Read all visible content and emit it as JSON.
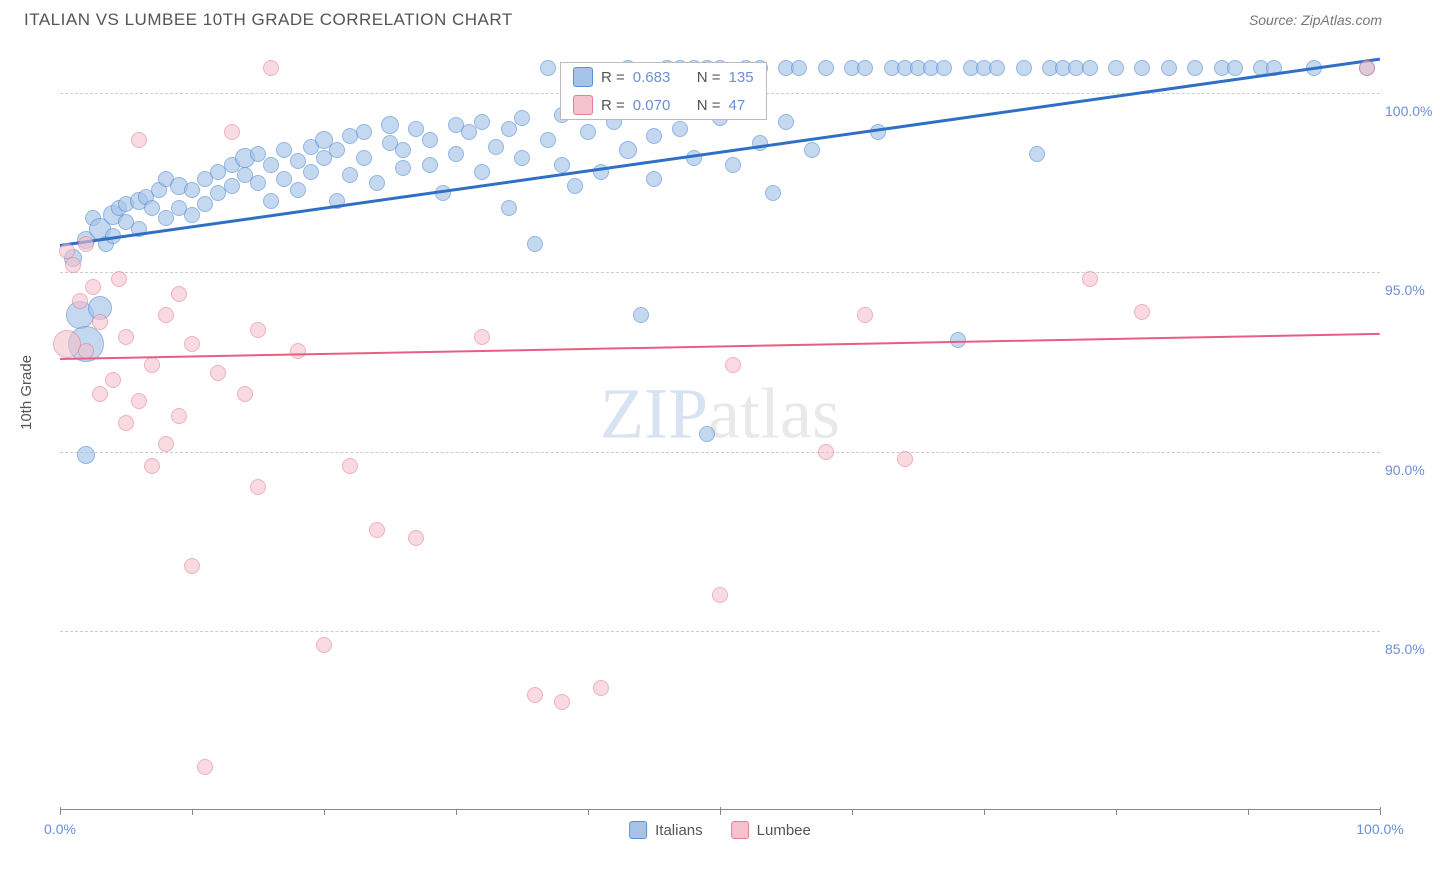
{
  "title": "ITALIAN VS LUMBEE 10TH GRADE CORRELATION CHART",
  "source": "Source: ZipAtlas.com",
  "ylabel": "10th Grade",
  "watermark_prefix": "ZIP",
  "watermark_suffix": "atlas",
  "chart": {
    "type": "scatter",
    "xlim": [
      0,
      100
    ],
    "ylim": [
      80,
      101.2
    ],
    "background_color": "#ffffff",
    "grid_color": "#cccccc",
    "axis_color": "#888888",
    "yticks": [
      {
        "v": 85.0,
        "label": "85.0%"
      },
      {
        "v": 90.0,
        "label": "90.0%"
      },
      {
        "v": 95.0,
        "label": "95.0%"
      },
      {
        "v": 100.0,
        "label": "100.0%"
      }
    ],
    "xticks_major": [
      0,
      50,
      100
    ],
    "xticks_minor": [
      10,
      20,
      30,
      40,
      60,
      70,
      80,
      90
    ],
    "xtick_labels": [
      {
        "v": 0,
        "label": "0.0%"
      },
      {
        "v": 100,
        "label": "100.0%"
      }
    ],
    "series": [
      {
        "name": "Italians",
        "fill": "#a6c4e8",
        "stroke": "#5b8fd6",
        "opacity": 0.65,
        "trend": {
          "x0": 0,
          "y0": 95.8,
          "x1": 100,
          "y1": 101.0,
          "color": "#2f6fc4",
          "width": 3
        },
        "stats": {
          "R": "0.683",
          "N": "135"
        },
        "points": [
          {
            "x": 1,
            "y": 95.4,
            "r": 9
          },
          {
            "x": 1.5,
            "y": 93.8,
            "r": 14
          },
          {
            "x": 2,
            "y": 95.9,
            "r": 9
          },
          {
            "x": 2,
            "y": 93.0,
            "r": 18
          },
          {
            "x": 2,
            "y": 89.9,
            "r": 9
          },
          {
            "x": 2.5,
            "y": 96.5,
            "r": 8
          },
          {
            "x": 3,
            "y": 96.2,
            "r": 11
          },
          {
            "x": 3,
            "y": 94.0,
            "r": 12
          },
          {
            "x": 3.5,
            "y": 95.8,
            "r": 8
          },
          {
            "x": 4,
            "y": 96.6,
            "r": 10
          },
          {
            "x": 4,
            "y": 96.0,
            "r": 8
          },
          {
            "x": 4.5,
            "y": 96.8,
            "r": 8
          },
          {
            "x": 5,
            "y": 96.4,
            "r": 8
          },
          {
            "x": 5,
            "y": 96.9,
            "r": 8
          },
          {
            "x": 6,
            "y": 97.0,
            "r": 9
          },
          {
            "x": 6,
            "y": 96.2,
            "r": 8
          },
          {
            "x": 6.5,
            "y": 97.1,
            "r": 8
          },
          {
            "x": 7,
            "y": 96.8,
            "r": 8
          },
          {
            "x": 7.5,
            "y": 97.3,
            "r": 8
          },
          {
            "x": 8,
            "y": 96.5,
            "r": 8
          },
          {
            "x": 8,
            "y": 97.6,
            "r": 8
          },
          {
            "x": 9,
            "y": 96.8,
            "r": 8
          },
          {
            "x": 9,
            "y": 97.4,
            "r": 9
          },
          {
            "x": 10,
            "y": 97.3,
            "r": 8
          },
          {
            "x": 10,
            "y": 96.6,
            "r": 8
          },
          {
            "x": 11,
            "y": 97.6,
            "r": 8
          },
          {
            "x": 11,
            "y": 96.9,
            "r": 8
          },
          {
            "x": 12,
            "y": 97.8,
            "r": 8
          },
          {
            "x": 12,
            "y": 97.2,
            "r": 8
          },
          {
            "x": 13,
            "y": 98.0,
            "r": 8
          },
          {
            "x": 13,
            "y": 97.4,
            "r": 8
          },
          {
            "x": 14,
            "y": 97.7,
            "r": 8
          },
          {
            "x": 14,
            "y": 98.2,
            "r": 10
          },
          {
            "x": 15,
            "y": 97.5,
            "r": 8
          },
          {
            "x": 15,
            "y": 98.3,
            "r": 8
          },
          {
            "x": 16,
            "y": 97.0,
            "r": 8
          },
          {
            "x": 16,
            "y": 98.0,
            "r": 8
          },
          {
            "x": 17,
            "y": 98.4,
            "r": 8
          },
          {
            "x": 17,
            "y": 97.6,
            "r": 8
          },
          {
            "x": 18,
            "y": 98.1,
            "r": 8
          },
          {
            "x": 18,
            "y": 97.3,
            "r": 8
          },
          {
            "x": 19,
            "y": 98.5,
            "r": 8
          },
          {
            "x": 19,
            "y": 97.8,
            "r": 8
          },
          {
            "x": 20,
            "y": 98.2,
            "r": 8
          },
          {
            "x": 20,
            "y": 98.7,
            "r": 9
          },
          {
            "x": 21,
            "y": 97.0,
            "r": 8
          },
          {
            "x": 21,
            "y": 98.4,
            "r": 8
          },
          {
            "x": 22,
            "y": 98.8,
            "r": 8
          },
          {
            "x": 22,
            "y": 97.7,
            "r": 8
          },
          {
            "x": 23,
            "y": 98.2,
            "r": 8
          },
          {
            "x": 23,
            "y": 98.9,
            "r": 8
          },
          {
            "x": 24,
            "y": 97.5,
            "r": 8
          },
          {
            "x": 25,
            "y": 98.6,
            "r": 8
          },
          {
            "x": 25,
            "y": 99.1,
            "r": 9
          },
          {
            "x": 26,
            "y": 97.9,
            "r": 8
          },
          {
            "x": 26,
            "y": 98.4,
            "r": 8
          },
          {
            "x": 27,
            "y": 99.0,
            "r": 8
          },
          {
            "x": 28,
            "y": 98.0,
            "r": 8
          },
          {
            "x": 28,
            "y": 98.7,
            "r": 8
          },
          {
            "x": 29,
            "y": 97.2,
            "r": 8
          },
          {
            "x": 30,
            "y": 99.1,
            "r": 8
          },
          {
            "x": 30,
            "y": 98.3,
            "r": 8
          },
          {
            "x": 31,
            "y": 98.9,
            "r": 8
          },
          {
            "x": 32,
            "y": 97.8,
            "r": 8
          },
          {
            "x": 32,
            "y": 99.2,
            "r": 8
          },
          {
            "x": 33,
            "y": 98.5,
            "r": 8
          },
          {
            "x": 34,
            "y": 96.8,
            "r": 8
          },
          {
            "x": 34,
            "y": 99.0,
            "r": 8
          },
          {
            "x": 35,
            "y": 98.2,
            "r": 8
          },
          {
            "x": 35,
            "y": 99.3,
            "r": 8
          },
          {
            "x": 36,
            "y": 95.8,
            "r": 8
          },
          {
            "x": 37,
            "y": 98.7,
            "r": 8
          },
          {
            "x": 37,
            "y": 100.7,
            "r": 8
          },
          {
            "x": 38,
            "y": 98.0,
            "r": 8
          },
          {
            "x": 38,
            "y": 99.4,
            "r": 8
          },
          {
            "x": 39,
            "y": 97.4,
            "r": 8
          },
          {
            "x": 40,
            "y": 98.9,
            "r": 8
          },
          {
            "x": 40,
            "y": 99.6,
            "r": 8
          },
          {
            "x": 41,
            "y": 97.8,
            "r": 8
          },
          {
            "x": 42,
            "y": 99.2,
            "r": 8
          },
          {
            "x": 43,
            "y": 98.4,
            "r": 9
          },
          {
            "x": 43,
            "y": 100.7,
            "r": 8
          },
          {
            "x": 44,
            "y": 93.8,
            "r": 8
          },
          {
            "x": 44,
            "y": 99.5,
            "r": 8
          },
          {
            "x": 45,
            "y": 98.8,
            "r": 8
          },
          {
            "x": 45,
            "y": 97.6,
            "r": 8
          },
          {
            "x": 46,
            "y": 100.7,
            "r": 8
          },
          {
            "x": 47,
            "y": 99.0,
            "r": 8
          },
          {
            "x": 47,
            "y": 100.7,
            "r": 8
          },
          {
            "x": 48,
            "y": 98.2,
            "r": 8
          },
          {
            "x": 48,
            "y": 100.7,
            "r": 8
          },
          {
            "x": 49,
            "y": 90.5,
            "r": 8
          },
          {
            "x": 49,
            "y": 100.7,
            "r": 8
          },
          {
            "x": 50,
            "y": 99.3,
            "r": 8
          },
          {
            "x": 50,
            "y": 100.7,
            "r": 8
          },
          {
            "x": 51,
            "y": 98.0,
            "r": 8
          },
          {
            "x": 52,
            "y": 100.7,
            "r": 8
          },
          {
            "x": 53,
            "y": 98.6,
            "r": 8
          },
          {
            "x": 53,
            "y": 100.7,
            "r": 8
          },
          {
            "x": 54,
            "y": 97.2,
            "r": 8
          },
          {
            "x": 55,
            "y": 100.7,
            "r": 8
          },
          {
            "x": 55,
            "y": 99.2,
            "r": 8
          },
          {
            "x": 56,
            "y": 100.7,
            "r": 8
          },
          {
            "x": 57,
            "y": 98.4,
            "r": 8
          },
          {
            "x": 58,
            "y": 100.7,
            "r": 8
          },
          {
            "x": 60,
            "y": 100.7,
            "r": 8
          },
          {
            "x": 61,
            "y": 100.7,
            "r": 8
          },
          {
            "x": 62,
            "y": 98.9,
            "r": 8
          },
          {
            "x": 63,
            "y": 100.7,
            "r": 8
          },
          {
            "x": 64,
            "y": 100.7,
            "r": 8
          },
          {
            "x": 65,
            "y": 100.7,
            "r": 8
          },
          {
            "x": 66,
            "y": 100.7,
            "r": 8
          },
          {
            "x": 67,
            "y": 100.7,
            "r": 8
          },
          {
            "x": 68,
            "y": 93.1,
            "r": 8
          },
          {
            "x": 69,
            "y": 100.7,
            "r": 8
          },
          {
            "x": 70,
            "y": 100.7,
            "r": 8
          },
          {
            "x": 71,
            "y": 100.7,
            "r": 8
          },
          {
            "x": 73,
            "y": 100.7,
            "r": 8
          },
          {
            "x": 74,
            "y": 98.3,
            "r": 8
          },
          {
            "x": 75,
            "y": 100.7,
            "r": 8
          },
          {
            "x": 76,
            "y": 100.7,
            "r": 8
          },
          {
            "x": 77,
            "y": 100.7,
            "r": 8
          },
          {
            "x": 78,
            "y": 100.7,
            "r": 8
          },
          {
            "x": 80,
            "y": 100.7,
            "r": 8
          },
          {
            "x": 82,
            "y": 100.7,
            "r": 8
          },
          {
            "x": 84,
            "y": 100.7,
            "r": 8
          },
          {
            "x": 86,
            "y": 100.7,
            "r": 8
          },
          {
            "x": 88,
            "y": 100.7,
            "r": 8
          },
          {
            "x": 89,
            "y": 100.7,
            "r": 8
          },
          {
            "x": 91,
            "y": 100.7,
            "r": 8
          },
          {
            "x": 92,
            "y": 100.7,
            "r": 8
          },
          {
            "x": 95,
            "y": 100.7,
            "r": 8
          },
          {
            "x": 99,
            "y": 100.7,
            "r": 8
          }
        ]
      },
      {
        "name": "Lumbee",
        "fill": "#f4c2cc",
        "stroke": "#e27f93",
        "opacity": 0.6,
        "trend": {
          "x0": 0,
          "y0": 92.6,
          "x1": 100,
          "y1": 93.3,
          "color": "#e85e82",
          "width": 2
        },
        "stats": {
          "R": "0.070",
          "N": "47"
        },
        "points": [
          {
            "x": 0.5,
            "y": 95.6,
            "r": 8
          },
          {
            "x": 0.5,
            "y": 93.0,
            "r": 14
          },
          {
            "x": 1,
            "y": 95.2,
            "r": 8
          },
          {
            "x": 1.5,
            "y": 94.2,
            "r": 8
          },
          {
            "x": 2,
            "y": 95.8,
            "r": 8
          },
          {
            "x": 2,
            "y": 92.8,
            "r": 8
          },
          {
            "x": 2.5,
            "y": 94.6,
            "r": 8
          },
          {
            "x": 3,
            "y": 91.6,
            "r": 8
          },
          {
            "x": 3,
            "y": 93.6,
            "r": 8
          },
          {
            "x": 4,
            "y": 92.0,
            "r": 8
          },
          {
            "x": 4.5,
            "y": 94.8,
            "r": 8
          },
          {
            "x": 5,
            "y": 90.8,
            "r": 8
          },
          {
            "x": 5,
            "y": 93.2,
            "r": 8
          },
          {
            "x": 6,
            "y": 91.4,
            "r": 8
          },
          {
            "x": 6,
            "y": 98.7,
            "r": 8
          },
          {
            "x": 7,
            "y": 89.6,
            "r": 8
          },
          {
            "x": 7,
            "y": 92.4,
            "r": 8
          },
          {
            "x": 8,
            "y": 93.8,
            "r": 8
          },
          {
            "x": 8,
            "y": 90.2,
            "r": 8
          },
          {
            "x": 9,
            "y": 94.4,
            "r": 8
          },
          {
            "x": 9,
            "y": 91.0,
            "r": 8
          },
          {
            "x": 10,
            "y": 86.8,
            "r": 8
          },
          {
            "x": 10,
            "y": 93.0,
            "r": 8
          },
          {
            "x": 11,
            "y": 81.2,
            "r": 8
          },
          {
            "x": 12,
            "y": 92.2,
            "r": 8
          },
          {
            "x": 13,
            "y": 98.9,
            "r": 8
          },
          {
            "x": 14,
            "y": 91.6,
            "r": 8
          },
          {
            "x": 15,
            "y": 89.0,
            "r": 8
          },
          {
            "x": 15,
            "y": 93.4,
            "r": 8
          },
          {
            "x": 16,
            "y": 100.7,
            "r": 8
          },
          {
            "x": 18,
            "y": 92.8,
            "r": 8
          },
          {
            "x": 20,
            "y": 84.6,
            "r": 8
          },
          {
            "x": 22,
            "y": 89.6,
            "r": 8
          },
          {
            "x": 24,
            "y": 87.8,
            "r": 8
          },
          {
            "x": 27,
            "y": 87.6,
            "r": 8
          },
          {
            "x": 32,
            "y": 93.2,
            "r": 8
          },
          {
            "x": 36,
            "y": 83.2,
            "r": 8
          },
          {
            "x": 38,
            "y": 83.0,
            "r": 8
          },
          {
            "x": 41,
            "y": 83.4,
            "r": 8
          },
          {
            "x": 50,
            "y": 86.0,
            "r": 8
          },
          {
            "x": 51,
            "y": 92.4,
            "r": 8
          },
          {
            "x": 58,
            "y": 90.0,
            "r": 8
          },
          {
            "x": 61,
            "y": 93.8,
            "r": 8
          },
          {
            "x": 64,
            "y": 89.8,
            "r": 8
          },
          {
            "x": 78,
            "y": 94.8,
            "r": 8
          },
          {
            "x": 82,
            "y": 93.9,
            "r": 8
          },
          {
            "x": 99,
            "y": 100.7,
            "r": 8
          }
        ]
      }
    ]
  },
  "legend_stats": {
    "r_label": "R =",
    "n_label": "N ="
  },
  "bottom_legend": [
    "Italians",
    "Lumbee"
  ]
}
